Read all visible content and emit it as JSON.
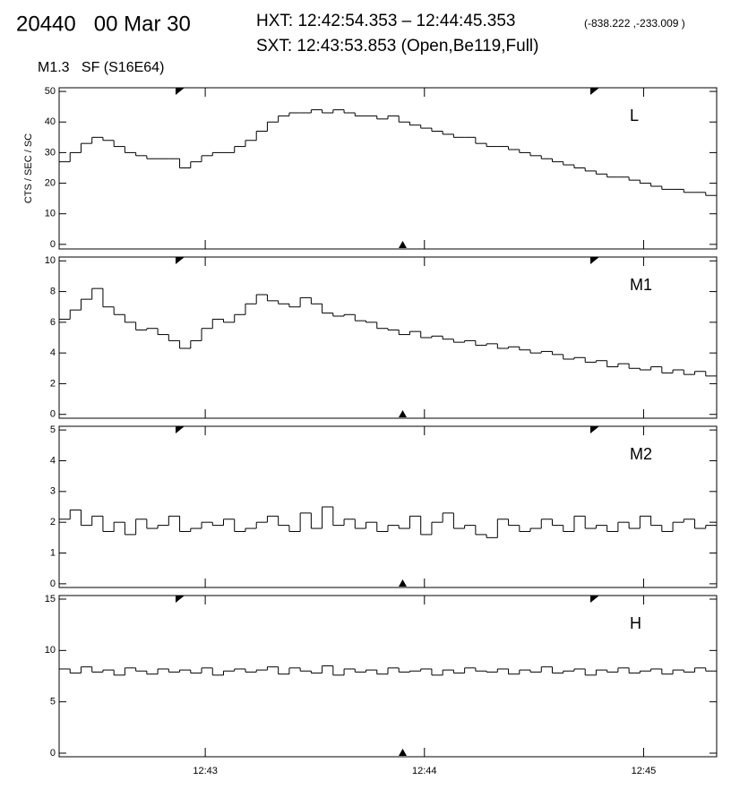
{
  "header": {
    "title": "20440   00 Mar 30",
    "hxt": "HXT: 12:42:54.353 – 12:44:45.353",
    "position": "(-838.222 ,-233.009 )",
    "sxt": "SXT: 12:43:53.853 (Open,Be119,Full)",
    "flare": "M1.3   SF (S16E64)"
  },
  "chart_data": [
    {
      "type": "step",
      "label": "L",
      "ylabel": "CTS / SEC / SC",
      "color": "#000000",
      "x": [
        20,
        23,
        26,
        29,
        32,
        35,
        38,
        41,
        44,
        47,
        50,
        53,
        56,
        59,
        62,
        65,
        68,
        71,
        74,
        77,
        80,
        83,
        86,
        89,
        92,
        95,
        98,
        101,
        104,
        107,
        110,
        113,
        116,
        119,
        122,
        125,
        128,
        131,
        134,
        137,
        140,
        143,
        146,
        149,
        152,
        155,
        158,
        161,
        164,
        167,
        170,
        173,
        176,
        179,
        182,
        185,
        188,
        191,
        194,
        197
      ],
      "values": [
        27,
        30,
        33,
        35,
        34,
        32,
        30,
        29,
        28,
        28,
        28,
        25,
        27,
        29,
        30,
        30,
        32,
        34,
        37,
        40,
        42,
        43,
        43,
        44,
        43,
        44,
        43,
        42,
        42,
        41,
        42,
        40,
        39,
        38,
        37,
        36,
        35,
        35,
        33,
        32,
        32,
        31,
        30,
        29,
        28,
        27,
        26,
        25,
        24,
        23,
        22,
        22,
        21,
        20,
        19,
        18,
        18,
        17,
        17,
        16
      ],
      "xlim": [
        20,
        200
      ],
      "ylim": [
        -1.5,
        51.2
      ],
      "yticks": [
        0,
        10,
        20,
        30,
        40,
        50
      ]
    },
    {
      "type": "step",
      "label": "M1",
      "color": "#000000",
      "x": [
        20,
        23,
        26,
        29,
        32,
        35,
        38,
        41,
        44,
        47,
        50,
        53,
        56,
        59,
        62,
        65,
        68,
        71,
        74,
        77,
        80,
        83,
        86,
        89,
        92,
        95,
        98,
        101,
        104,
        107,
        110,
        113,
        116,
        119,
        122,
        125,
        128,
        131,
        134,
        137,
        140,
        143,
        146,
        149,
        152,
        155,
        158,
        161,
        164,
        167,
        170,
        173,
        176,
        179,
        182,
        185,
        188,
        191,
        194,
        197
      ],
      "values": [
        6.2,
        6.8,
        7.5,
        8.2,
        7.0,
        6.5,
        6.0,
        5.5,
        5.6,
        5.2,
        4.8,
        4.3,
        4.8,
        5.6,
        6.2,
        6.0,
        6.5,
        7.2,
        7.8,
        7.4,
        7.2,
        7.0,
        7.6,
        7.2,
        6.6,
        6.4,
        6.5,
        6.1,
        6.0,
        5.6,
        5.5,
        5.2,
        5.4,
        5.0,
        5.1,
        4.9,
        4.7,
        4.8,
        4.5,
        4.6,
        4.3,
        4.4,
        4.2,
        4.0,
        4.1,
        3.9,
        3.6,
        3.7,
        3.4,
        3.5,
        3.1,
        3.3,
        3.0,
        2.9,
        3.1,
        2.7,
        2.9,
        2.6,
        2.8,
        2.5
      ],
      "xlim": [
        20,
        200
      ],
      "ylim": [
        -0.25,
        10.25
      ],
      "yticks": [
        0,
        2,
        4,
        6,
        8,
        10
      ]
    },
    {
      "type": "step",
      "label": "M2",
      "color": "#000000",
      "x": [
        20,
        23,
        26,
        29,
        32,
        35,
        38,
        41,
        44,
        47,
        50,
        53,
        56,
        59,
        62,
        65,
        68,
        71,
        74,
        77,
        80,
        83,
        86,
        89,
        92,
        95,
        98,
        101,
        104,
        107,
        110,
        113,
        116,
        119,
        122,
        125,
        128,
        131,
        134,
        137,
        140,
        143,
        146,
        149,
        152,
        155,
        158,
        161,
        164,
        167,
        170,
        173,
        176,
        179,
        182,
        185,
        188,
        191,
        194,
        197
      ],
      "values": [
        2.1,
        2.4,
        1.9,
        2.2,
        1.7,
        2.0,
        1.6,
        2.1,
        1.8,
        1.9,
        2.2,
        1.7,
        1.8,
        2.0,
        1.9,
        2.1,
        1.7,
        1.8,
        2.0,
        2.2,
        1.9,
        1.7,
        2.3,
        1.8,
        2.5,
        1.9,
        2.1,
        1.8,
        2.0,
        1.7,
        1.9,
        1.8,
        2.2,
        1.6,
        2.0,
        2.3,
        1.8,
        1.9,
        1.6,
        1.5,
        2.1,
        1.9,
        1.7,
        1.8,
        2.1,
        1.9,
        1.7,
        2.2,
        1.8,
        1.9,
        1.7,
        2.0,
        1.8,
        2.2,
        1.9,
        1.7,
        2.0,
        2.1,
        1.8,
        1.9
      ],
      "xlim": [
        20,
        200
      ],
      "ylim": [
        -0.12,
        5.12
      ],
      "yticks": [
        0,
        1,
        2,
        3,
        4,
        5
      ]
    },
    {
      "type": "step",
      "label": "H",
      "color": "#000000",
      "x": [
        20,
        23,
        26,
        29,
        32,
        35,
        38,
        41,
        44,
        47,
        50,
        53,
        56,
        59,
        62,
        65,
        68,
        71,
        74,
        77,
        80,
        83,
        86,
        89,
        92,
        95,
        98,
        101,
        104,
        107,
        110,
        113,
        116,
        119,
        122,
        125,
        128,
        131,
        134,
        137,
        140,
        143,
        146,
        149,
        152,
        155,
        158,
        161,
        164,
        167,
        170,
        173,
        176,
        179,
        182,
        185,
        188,
        191,
        194,
        197
      ],
      "values": [
        8.2,
        7.8,
        8.4,
        7.9,
        8.1,
        7.6,
        8.3,
        8.0,
        7.7,
        8.2,
        7.9,
        8.1,
        7.8,
        8.3,
        7.6,
        8.0,
        8.2,
        7.9,
        8.1,
        8.4,
        7.7,
        8.3,
        8.0,
        7.8,
        8.5,
        7.6,
        8.2,
        7.9,
        8.1,
        7.7,
        8.3,
        7.9,
        8.0,
        8.2,
        7.6,
        8.1,
        7.8,
        8.3,
        8.0,
        7.9,
        8.2,
        7.7,
        8.1,
        7.9,
        8.4,
        7.8,
        8.0,
        8.2,
        7.6,
        8.1,
        7.9,
        8.3,
        7.8,
        8.0,
        8.2,
        7.7,
        8.1,
        7.9,
        8.3,
        8.0
      ],
      "xlim": [
        20,
        200
      ],
      "ylim": [
        -0.35,
        15.35
      ],
      "yticks": [
        0,
        5,
        10,
        15
      ],
      "xticks": [
        {
          "value": 60,
          "label": "12:43"
        },
        {
          "value": 120,
          "label": "12:44"
        },
        {
          "value": 180,
          "label": "12:45"
        }
      ]
    }
  ]
}
